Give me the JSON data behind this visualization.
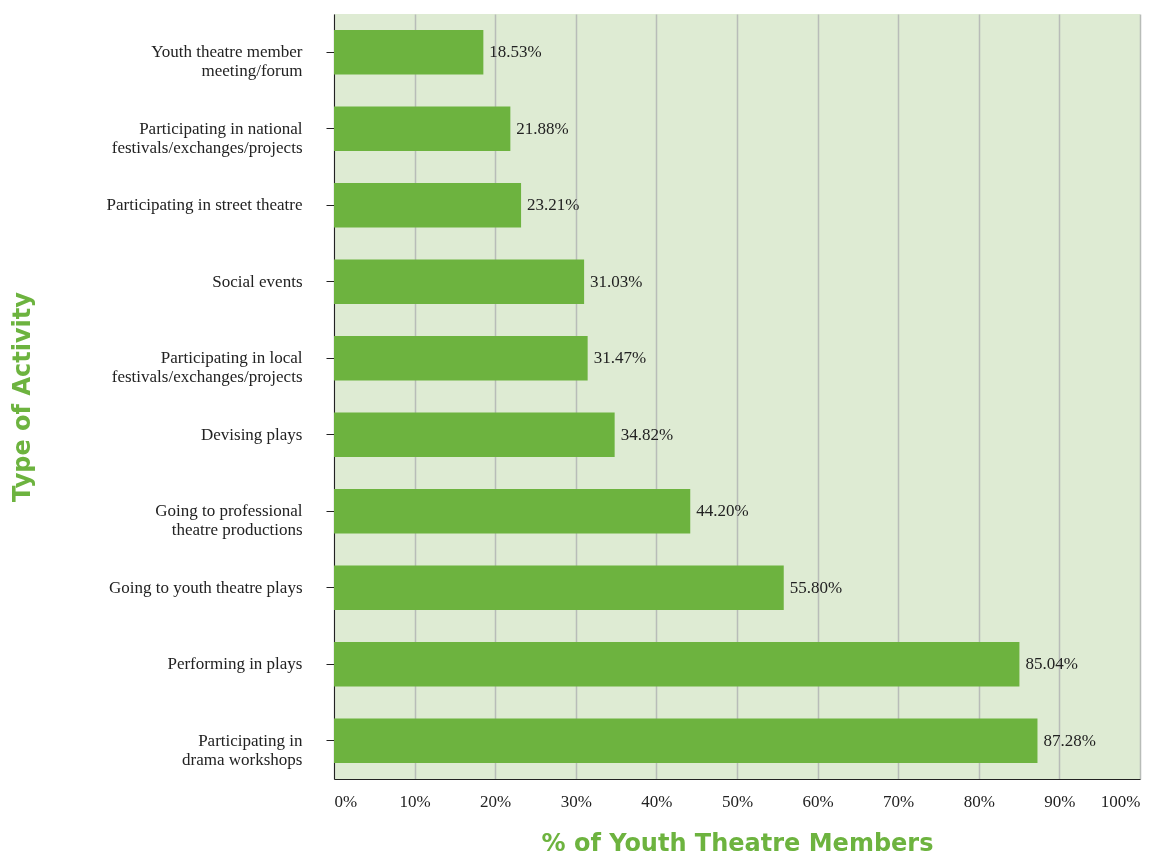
{
  "chart_data": {
    "type": "bar",
    "orientation": "horizontal",
    "xlabel": "% of Youth Theatre Members",
    "ylabel": "Type of Activity",
    "categories": [
      "Youth theatre member\nmeeting/forum",
      "Participating in national\nfestivals/exchanges/projects",
      "Participating in street theatre",
      "Social events",
      "Participating in local\nfestivals/exchanges/projects",
      "Devising plays",
      "Going to professional\ntheatre productions",
      "Going to youth theatre plays",
      "Performing in plays",
      "Participating in\ndrama workshops"
    ],
    "values": [
      18.53,
      21.88,
      23.21,
      31.03,
      31.47,
      34.82,
      44.2,
      55.8,
      85.04,
      87.28
    ],
    "value_labels": [
      "18.53%",
      "21.88%",
      "23.21%",
      "31.03%",
      "31.47%",
      "34.82%",
      "44.20%",
      "55.80%",
      "85.04%",
      "87.28%"
    ],
    "color": "#6db33f",
    "xlim": [
      0,
      100
    ],
    "xticks": [
      {
        "value": 0,
        "label": "0%"
      },
      {
        "value": 10,
        "label": "10%"
      },
      {
        "value": 20,
        "label": "20%"
      },
      {
        "value": 30,
        "label": "30%"
      },
      {
        "value": 40,
        "label": "40%"
      },
      {
        "value": 50,
        "label": "50%"
      },
      {
        "value": 60,
        "label": "60%"
      },
      {
        "value": 70,
        "label": "70%"
      },
      {
        "value": 80,
        "label": "80%"
      },
      {
        "value": 90,
        "label": "90%"
      },
      {
        "value": 100,
        "label": "100%"
      }
    ],
    "grid": "x"
  }
}
